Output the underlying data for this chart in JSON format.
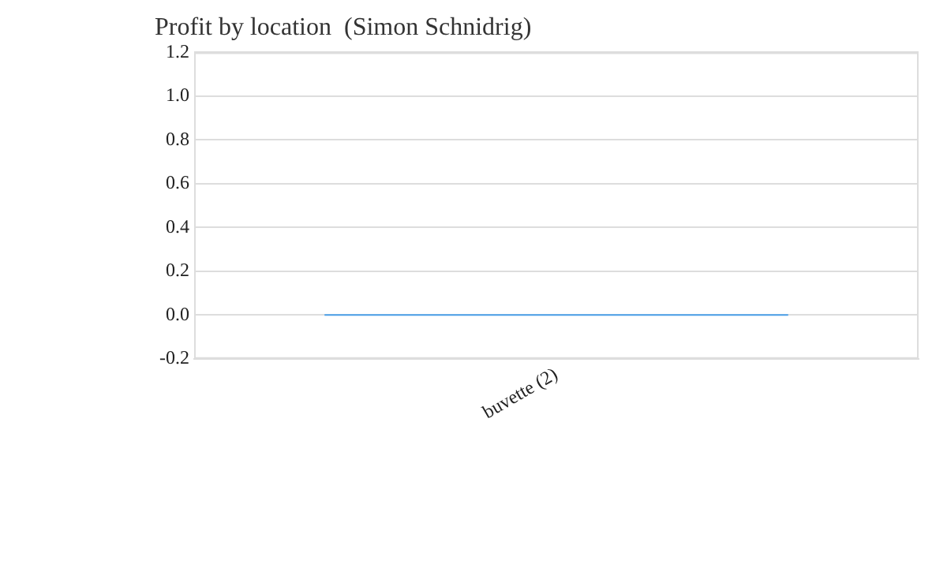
{
  "chart_data": {
    "type": "bar",
    "title": "Profit by location  (Simon Schnidrig)",
    "categories": [
      "buvette (2)"
    ],
    "values": [
      0
    ],
    "color": "#4a9fe8",
    "ylim": [
      -0.2,
      1.2
    ],
    "yticks": [
      -0.2,
      {
        "value": 0,
        "label": "0.0"
      },
      0.2,
      0.4,
      0.6,
      0.8,
      {
        "value": 1,
        "label": "1.0"
      },
      1.2
    ],
    "grid": "y",
    "legend": false
  }
}
